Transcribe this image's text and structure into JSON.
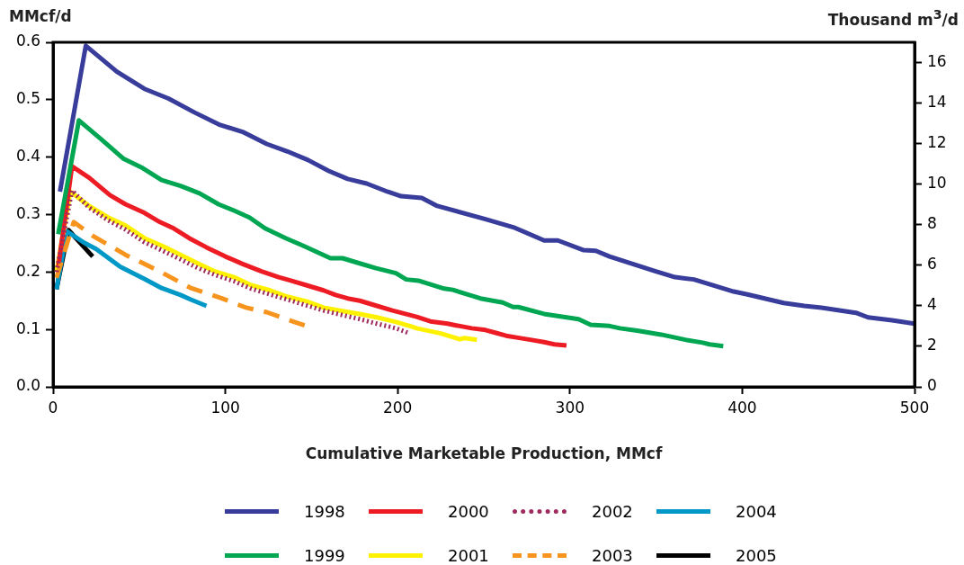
{
  "chart_data": {
    "type": "line",
    "xlabel": "Cumulative Marketable Production, MMcf",
    "ylabel": "MMcf/d",
    "y2label": "Thousand m$^{3}$/d",
    "xlim": [
      0,
      500
    ],
    "xticks": [
      0,
      100,
      200,
      300,
      400,
      500
    ],
    "ylim": [
      0,
      0.6
    ],
    "yticks": [
      {
        "value": 0,
        "label": "0.0"
      },
      0.1,
      0.2,
      0.3,
      0.4,
      0.5,
      0.6
    ],
    "y2lim": [
      0,
      16.99
    ],
    "y2ticks": [
      0,
      2,
      4,
      6,
      8,
      10,
      12,
      14,
      16
    ],
    "grid": false,
    "legend": "bottom",
    "marker": "none",
    "series": [
      {
        "name": "1998",
        "color": "#383c9a",
        "line_style": "solid",
        "x": [
          4,
          19,
          37,
          53,
          67,
          82,
          97,
          110,
          124,
          136,
          148,
          160,
          171,
          182,
          194,
          202,
          214,
          223,
          251,
          268,
          285,
          293,
          308,
          315,
          323,
          349,
          361,
          372,
          395,
          403,
          424,
          436,
          446,
          466,
          473,
          487,
          500
        ],
        "values": [
          0.34,
          0.594,
          0.549,
          0.519,
          0.502,
          0.478,
          0.456,
          0.444,
          0.423,
          0.41,
          0.395,
          0.376,
          0.362,
          0.354,
          0.34,
          0.332,
          0.329,
          0.315,
          0.292,
          0.277,
          0.255,
          0.255,
          0.238,
          0.237,
          0.227,
          0.202,
          0.191,
          0.187,
          0.166,
          0.161,
          0.146,
          0.141,
          0.138,
          0.129,
          0.121,
          0.116,
          0.11
        ]
      },
      {
        "name": "1999",
        "color": "#00a651",
        "line_style": "solid",
        "x": [
          3,
          15,
          28,
          41,
          52,
          63,
          74,
          85,
          96,
          105,
          114,
          123,
          135,
          145,
          153,
          161,
          168,
          178,
          187,
          199,
          205,
          212,
          227,
          232,
          248,
          261,
          267,
          270,
          285,
          305,
          312,
          323,
          329,
          339,
          353,
          367,
          377,
          381,
          389
        ],
        "values": [
          0.266,
          0.464,
          0.431,
          0.397,
          0.381,
          0.36,
          0.35,
          0.337,
          0.318,
          0.307,
          0.295,
          0.276,
          0.259,
          0.246,
          0.235,
          0.224,
          0.224,
          0.215,
          0.207,
          0.198,
          0.187,
          0.185,
          0.171,
          0.169,
          0.154,
          0.147,
          0.139,
          0.139,
          0.127,
          0.118,
          0.108,
          0.106,
          0.102,
          0.098,
          0.091,
          0.082,
          0.077,
          0.074,
          0.071
        ]
      },
      {
        "name": "2000",
        "color": "#ed1c24",
        "line_style": "solid",
        "x": [
          3,
          11,
          21,
          33,
          42,
          53,
          62,
          70,
          79,
          89,
          100,
          110,
          121,
          131,
          138,
          147,
          157,
          164,
          171,
          178,
          188,
          197,
          211,
          219,
          229,
          234,
          243,
          251,
          257,
          263,
          269,
          277,
          285,
          291,
          298
        ],
        "values": [
          0.208,
          0.384,
          0.364,
          0.334,
          0.318,
          0.303,
          0.287,
          0.276,
          0.259,
          0.243,
          0.227,
          0.214,
          0.201,
          0.191,
          0.185,
          0.177,
          0.168,
          0.16,
          0.154,
          0.15,
          0.141,
          0.133,
          0.122,
          0.114,
          0.11,
          0.107,
          0.102,
          0.099,
          0.094,
          0.089,
          0.086,
          0.082,
          0.078,
          0.074,
          0.072
        ]
      },
      {
        "name": "2001",
        "color": "#fff200",
        "line_style": "solid",
        "x": [
          2,
          10,
          21,
          32,
          42,
          53,
          63,
          74,
          84,
          94,
          105,
          115,
          126,
          136,
          147,
          157,
          168,
          178,
          188,
          199,
          208,
          211,
          225,
          236,
          239,
          246
        ],
        "values": [
          0.2,
          0.34,
          0.315,
          0.295,
          0.281,
          0.259,
          0.246,
          0.23,
          0.215,
          0.201,
          0.191,
          0.177,
          0.168,
          0.157,
          0.149,
          0.138,
          0.132,
          0.127,
          0.121,
          0.113,
          0.105,
          0.102,
          0.093,
          0.083,
          0.085,
          0.082
        ]
      },
      {
        "name": "2002",
        "color": "#9e2a5e",
        "line_style": "dotted",
        "x": [
          2,
          11,
          21,
          32,
          42,
          53,
          63,
          74,
          84,
          94,
          105,
          115,
          126,
          136,
          147,
          157,
          168,
          178,
          188,
          199,
          207
        ],
        "values": [
          0.2,
          0.342,
          0.312,
          0.29,
          0.274,
          0.252,
          0.238,
          0.222,
          0.207,
          0.195,
          0.184,
          0.171,
          0.161,
          0.152,
          0.142,
          0.133,
          0.125,
          0.118,
          0.11,
          0.102,
          0.093
        ]
      },
      {
        "name": "2003",
        "color": "#f7941d",
        "line_style": "dashed",
        "x": [
          2,
          12,
          23,
          42,
          60,
          80,
          98,
          112,
          124,
          140,
          146
        ],
        "values": [
          0.19,
          0.287,
          0.263,
          0.23,
          0.204,
          0.172,
          0.154,
          0.138,
          0.13,
          0.113,
          0.107
        ]
      },
      {
        "name": "2004",
        "color": "#0098c6",
        "line_style": "solid",
        "x": [
          2,
          8,
          18,
          25,
          39,
          53,
          63,
          74,
          80,
          89
        ],
        "values": [
          0.17,
          0.271,
          0.251,
          0.24,
          0.209,
          0.188,
          0.172,
          0.16,
          0.152,
          0.141
        ]
      },
      {
        "name": "2005",
        "color": "#000000",
        "line_style": "solid",
        "x": [
          2,
          9,
          23
        ],
        "values": [
          0.17,
          0.273,
          0.227
        ]
      }
    ]
  }
}
